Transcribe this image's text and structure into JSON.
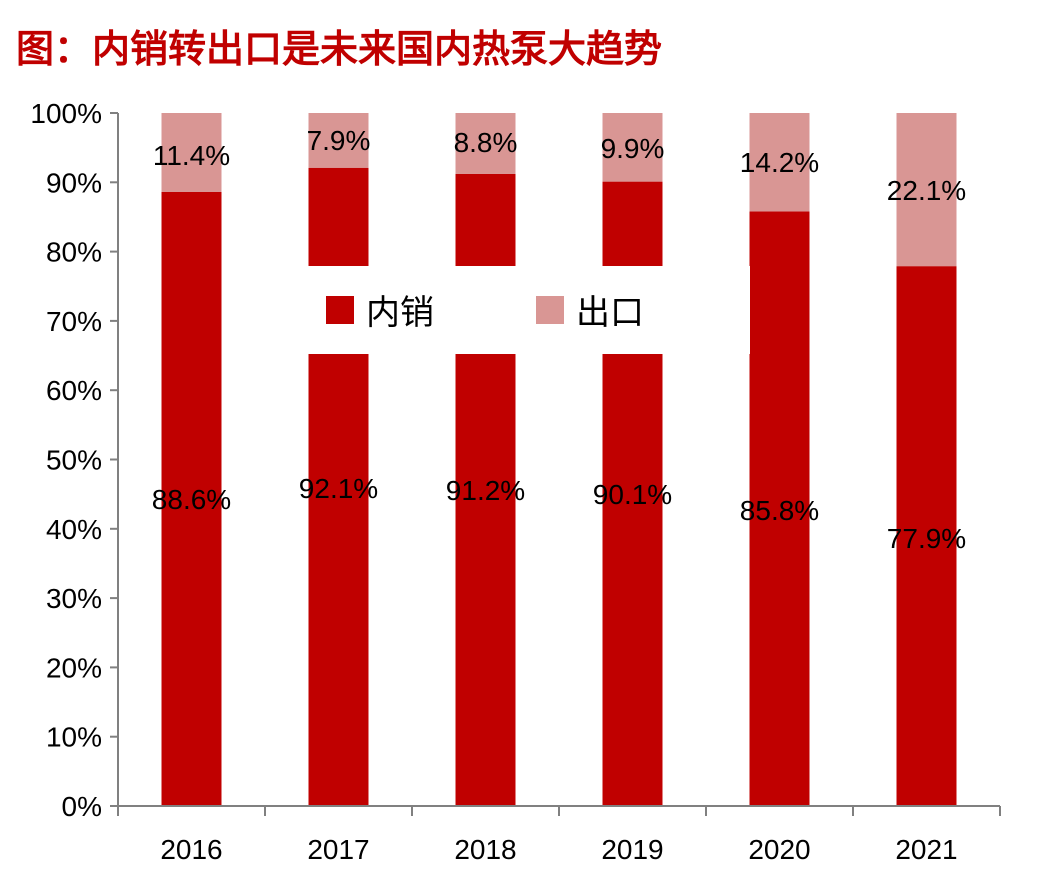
{
  "title": "图：内销转出口是未来国内热泵大趋势",
  "chart_data": {
    "type": "bar",
    "stacked": true,
    "categories": [
      "2016",
      "2017",
      "2018",
      "2019",
      "2020",
      "2021"
    ],
    "series": [
      {
        "name": "内销",
        "values": [
          88.6,
          92.1,
          91.2,
          90.1,
          85.8,
          77.9
        ],
        "labels": [
          "88.6%",
          "92.1%",
          "91.2%",
          "90.1%",
          "85.8%",
          "77.9%"
        ],
        "color": "#c00000"
      },
      {
        "name": "出口",
        "values": [
          11.4,
          7.9,
          8.8,
          9.9,
          14.2,
          22.1
        ],
        "labels": [
          "11.4%",
          "7.9%",
          "8.8%",
          "9.9%",
          "14.2%",
          "22.1%"
        ],
        "color": "#d99694"
      }
    ],
    "y_ticks": [
      "0%",
      "10%",
      "20%",
      "30%",
      "40%",
      "50%",
      "60%",
      "70%",
      "80%",
      "90%",
      "100%"
    ],
    "ylim": [
      0,
      100
    ],
    "grid": false,
    "legend": {
      "placement": "inside-top-center",
      "items": [
        "内销",
        "出口"
      ]
    }
  }
}
